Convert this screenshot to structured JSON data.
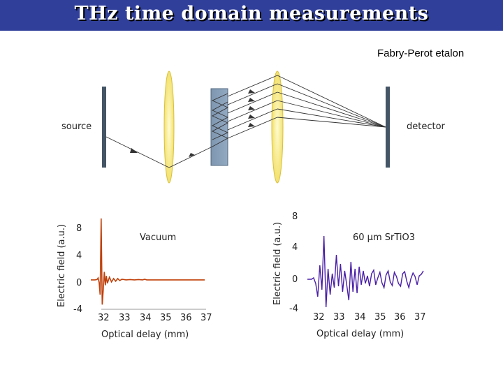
{
  "slide": {
    "title": "THz time domain measurements",
    "subtitle": "Fabry-Perot etalon"
  },
  "diagram": {
    "source_label": "source",
    "detector_label": "detector"
  },
  "chart_data": [
    {
      "type": "line",
      "title": "",
      "annotation": "Vacuum",
      "xlabel": "Optical delay (mm)",
      "ylabel": "Electric field (a.u.)",
      "xticks": [
        "32",
        "33",
        "34",
        "35",
        "36",
        "37"
      ],
      "yticks": [
        "8",
        "4",
        "0",
        "-4"
      ],
      "xlim": [
        31.5,
        37.1
      ],
      "ylim": [
        -4.5,
        9.5
      ],
      "color": "#c0400a",
      "x": [
        31.5,
        31.7,
        31.8,
        31.85,
        31.9,
        31.95,
        32.0,
        32.05,
        32.1,
        32.15,
        32.2,
        32.25,
        32.3,
        32.4,
        32.5,
        32.6,
        32.7,
        32.8,
        32.9,
        33.0,
        33.2,
        33.4,
        33.6,
        33.8,
        34.0,
        34.1,
        34.2,
        34.5,
        35.0,
        35.5,
        36.0,
        36.5,
        37.0
      ],
      "y": [
        0,
        0,
        0.05,
        0.3,
        -0.4,
        -2.2,
        9.2,
        -3.7,
        -1.5,
        1.2,
        -0.8,
        0.6,
        -0.5,
        0.4,
        -0.3,
        0.2,
        -0.2,
        0.2,
        -0.1,
        0.1,
        0,
        0.05,
        0,
        0.05,
        0,
        0.1,
        0,
        0,
        0,
        0,
        0,
        0,
        0
      ]
    },
    {
      "type": "line",
      "title": "",
      "annotation": "60 µm SrTiO3",
      "xlabel": "Optical delay (mm)",
      "ylabel": "Electric field (a.u.)",
      "xticks": [
        "32",
        "33",
        "34",
        "35",
        "36",
        "37"
      ],
      "yticks": [
        "8",
        "4",
        "0",
        "-4"
      ],
      "xlim": [
        31.5,
        37.1
      ],
      "ylim": [
        -4.5,
        9.5
      ],
      "color": "#4a1fa8",
      "x": [
        31.5,
        31.7,
        31.8,
        31.9,
        32.0,
        32.1,
        32.2,
        32.3,
        32.4,
        32.5,
        32.6,
        32.7,
        32.8,
        32.9,
        33.0,
        33.1,
        33.2,
        33.3,
        33.4,
        33.5,
        33.6,
        33.7,
        33.8,
        33.9,
        34.0,
        34.1,
        34.2,
        34.3,
        34.4,
        34.5,
        34.6,
        34.7,
        34.8,
        34.9,
        35.0,
        35.1,
        35.2,
        35.3,
        35.4,
        35.5,
        35.6,
        35.7,
        35.8,
        35.9,
        36.0,
        36.1,
        36.2,
        36.3,
        36.4,
        36.5,
        36.6,
        36.7,
        36.8,
        36.9,
        37.0,
        37.1
      ],
      "y": [
        0,
        0,
        0.2,
        -0.6,
        -2.5,
        2.0,
        -1.5,
        6.2,
        -4.0,
        1.5,
        -2.2,
        0.8,
        -1.2,
        3.5,
        -1.0,
        2.2,
        -1.8,
        1.2,
        -0.8,
        -3.0,
        2.5,
        -1.8,
        1.5,
        -2.0,
        1.8,
        -0.8,
        1.2,
        -0.6,
        0.5,
        -1.0,
        0.8,
        1.3,
        -0.8,
        0.2,
        1.0,
        -0.5,
        -1.2,
        0.6,
        1.2,
        -0.4,
        -0.9,
        1.0,
        0.4,
        -0.6,
        -1.0,
        0.8,
        1.1,
        -0.3,
        -1.2,
        0.1,
        0.9,
        0.4,
        -0.8,
        0.5,
        0.7,
        1.2
      ]
    }
  ]
}
